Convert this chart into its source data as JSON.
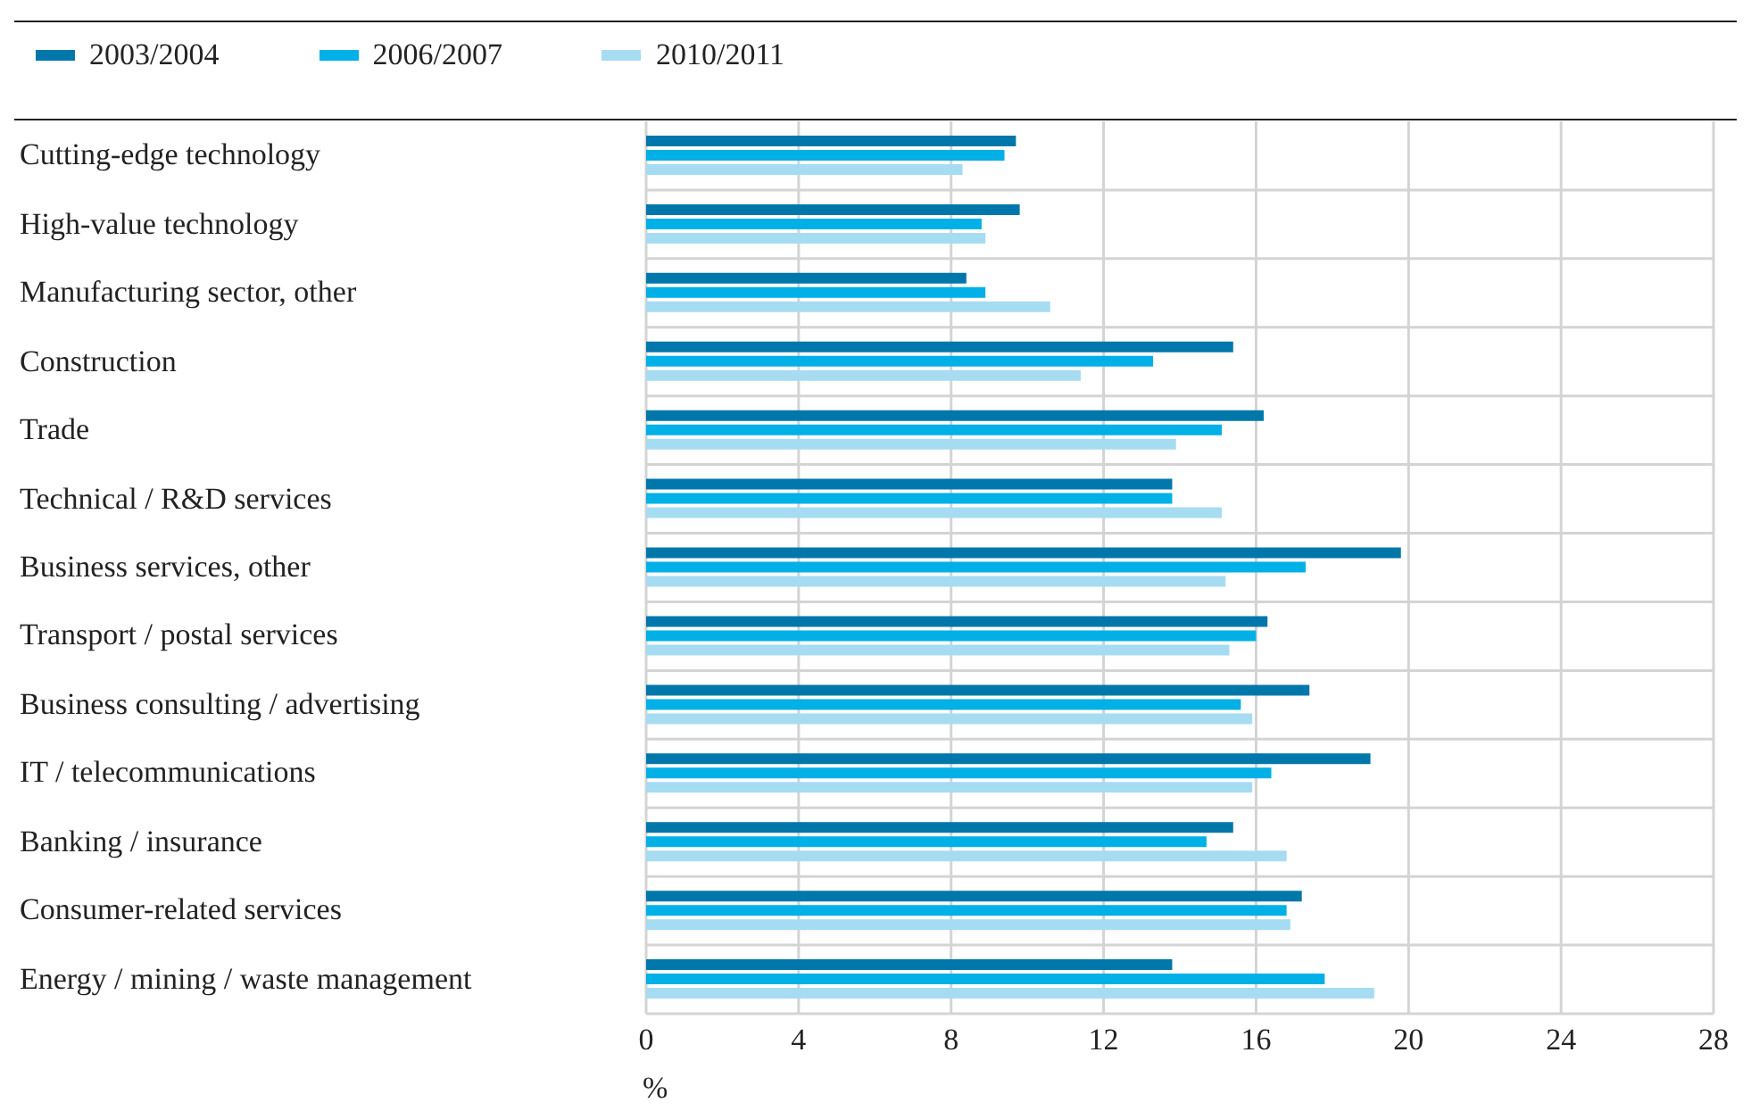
{
  "chart_data": {
    "type": "bar",
    "orientation": "horizontal",
    "xlabel": "%",
    "categories": [
      "Cutting-edge technology",
      "High-value technology",
      "Manufacturing sector, other",
      "Construction",
      "Trade",
      "Technical / R&D services",
      "Business services, other",
      "Transport / postal services",
      "Business consulting / advertising",
      "IT / telecommunications",
      "Banking / insurance",
      "Consumer-related services",
      "Energy / mining / waste management"
    ],
    "series": [
      {
        "name": "2003/2004",
        "color": "#0077aa",
        "values": [
          9.7,
          9.8,
          8.4,
          15.4,
          16.2,
          13.8,
          19.8,
          16.3,
          17.4,
          19.0,
          15.4,
          17.2,
          13.8
        ]
      },
      {
        "name": "2006/2007",
        "color": "#00b0e6",
        "values": [
          9.4,
          8.8,
          8.9,
          13.3,
          15.1,
          13.8,
          17.3,
          16.0,
          15.6,
          16.4,
          14.7,
          16.8,
          17.8
        ]
      },
      {
        "name": "2010/2011",
        "color": "#a6dcf2",
        "values": [
          8.3,
          8.9,
          10.6,
          11.4,
          13.9,
          15.1,
          15.2,
          15.3,
          15.9,
          15.9,
          16.8,
          16.9,
          19.1
        ]
      }
    ],
    "xlim": [
      0,
      28
    ],
    "xticks": [
      0,
      4,
      8,
      12,
      16,
      20,
      24,
      28
    ],
    "grid": true,
    "legend": "top left"
  }
}
